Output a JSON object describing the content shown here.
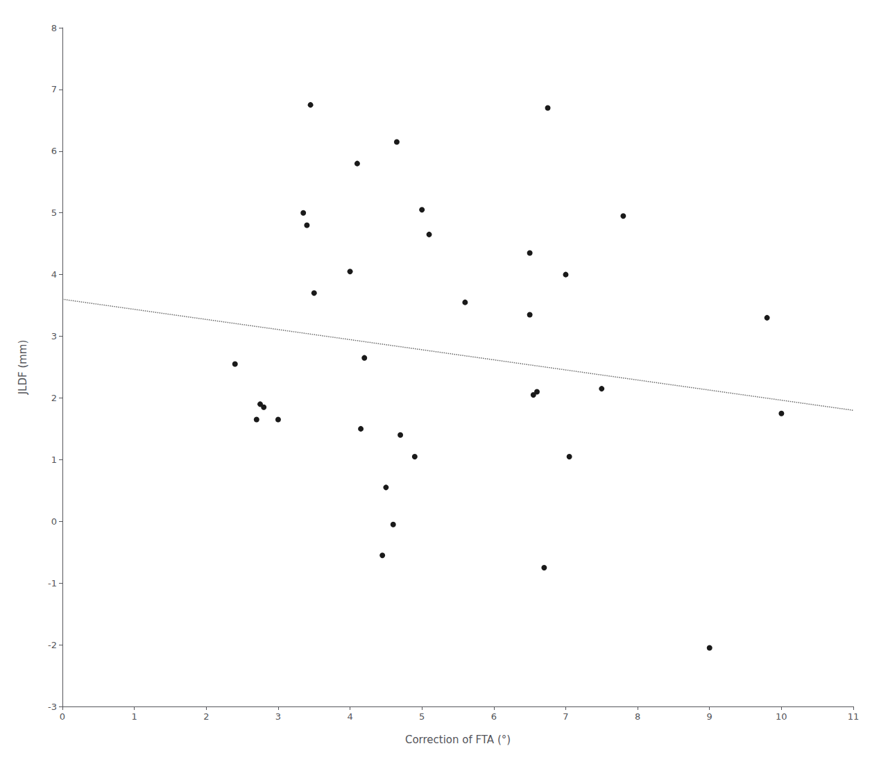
{
  "chart_data": {
    "type": "scatter",
    "xlabel": "Correction of FTA (°)",
    "ylabel": "JLDF (mm)",
    "xlim": [
      0,
      11
    ],
    "ylim": [
      -3,
      8
    ],
    "xticks": [
      0,
      1,
      2,
      3,
      4,
      5,
      6,
      7,
      8,
      9,
      10,
      11
    ],
    "yticks": [
      -3,
      -2,
      -1,
      0,
      1,
      2,
      3,
      4,
      5,
      6,
      7,
      8
    ],
    "grid": false,
    "series": [
      {
        "type": "scatter",
        "color": "#1a1a1a",
        "marker": "circle",
        "x": [
          2.4,
          2.7,
          2.75,
          2.8,
          3.0,
          3.35,
          3.4,
          3.45,
          3.5,
          4.0,
          4.1,
          4.15,
          4.2,
          4.45,
          4.5,
          4.6,
          4.65,
          4.9,
          5.0,
          5.1,
          5.6,
          6.5,
          6.55,
          6.6,
          6.7,
          6.75,
          7.0,
          7.05,
          7.5,
          7.8,
          9.0,
          9.8,
          10.0,
          4.7,
          6.5
        ],
        "values": [
          2.55,
          1.65,
          1.9,
          1.85,
          1.65,
          5.0,
          4.8,
          6.75,
          3.7,
          4.05,
          5.8,
          1.5,
          2.65,
          -0.55,
          0.55,
          -0.05,
          6.15,
          1.05,
          5.05,
          4.65,
          3.55,
          4.35,
          2.05,
          2.1,
          -0.75,
          6.7,
          4.0,
          1.05,
          2.15,
          4.95,
          -2.05,
          3.3,
          1.75,
          1.4,
          3.35
        ]
      },
      {
        "type": "line",
        "color": "#666666",
        "line_style": "dotted",
        "x": [
          0,
          11
        ],
        "values": [
          3.6,
          1.8
        ]
      }
    ]
  }
}
